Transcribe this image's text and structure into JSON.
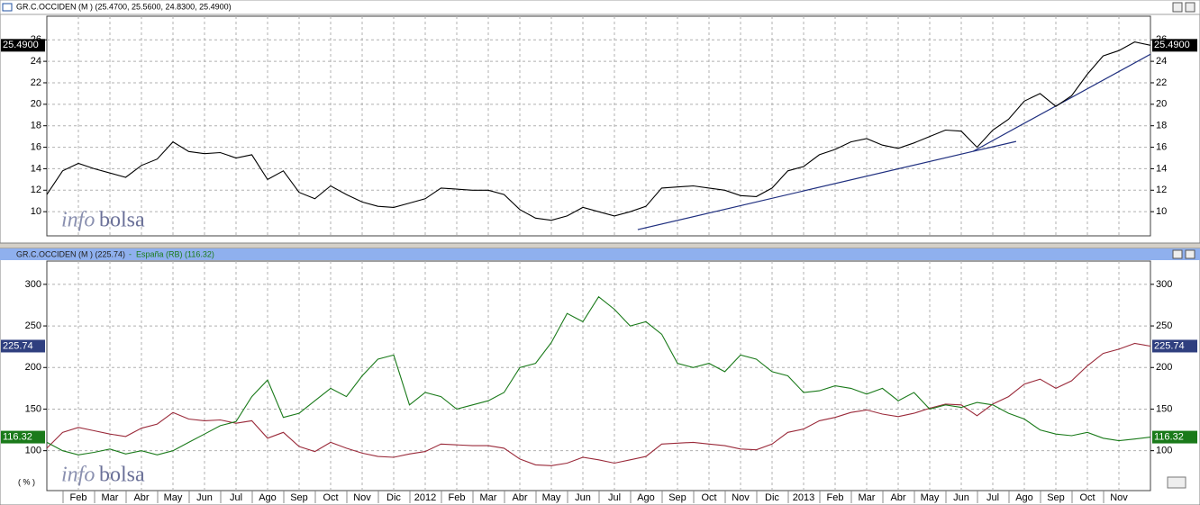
{
  "chart_data": [
    {
      "type": "line",
      "title": "GR.C.OCCIDEN (M ) (25.4700, 25.5600, 24.8300, 25.4900)",
      "xlim": [
        0,
        35
      ],
      "xticks": [
        1,
        2,
        3,
        4,
        5,
        6,
        7,
        8,
        9,
        10,
        11,
        12,
        13,
        14,
        15,
        16,
        17,
        18,
        19,
        20,
        21,
        22,
        23,
        24,
        25,
        26,
        27,
        28,
        29,
        30,
        31,
        32,
        33,
        34
      ],
      "ylim": [
        7.75,
        28.2
      ],
      "yticks": [
        10,
        12,
        14,
        16,
        18,
        20,
        22,
        24,
        26
      ],
      "grid": true,
      "x": [
        0,
        0.5,
        1,
        1.5,
        2,
        2.5,
        3,
        3.5,
        4,
        4.5,
        5,
        5.5,
        6,
        6.5,
        7,
        7.5,
        8,
        8.5,
        9,
        9.5,
        10,
        10.5,
        11,
        11.5,
        12,
        12.5,
        13,
        13.5,
        14,
        14.5,
        15,
        15.5,
        16,
        16.5,
        17,
        17.5,
        18,
        18.5,
        19,
        19.5,
        20,
        20.5,
        21,
        21.5,
        22,
        22.5,
        23,
        23.5,
        24,
        24.5,
        25,
        25.5,
        26,
        26.5,
        27,
        27.5,
        28,
        28.5,
        29,
        29.5,
        30,
        30.5,
        31,
        31.5,
        32,
        32.5,
        33,
        33.5,
        34,
        34.5,
        35
      ],
      "series": [
        {
          "name": "GR.C.OCCIDEN (M )",
          "color": "#000000",
          "values": [
            11.6,
            13.8,
            14.5,
            14.0,
            13.6,
            13.2,
            14.3,
            14.9,
            16.5,
            15.6,
            15.4,
            15.5,
            15.0,
            15.3,
            13.0,
            13.8,
            11.8,
            11.2,
            12.4,
            11.6,
            10.9,
            10.5,
            10.4,
            10.8,
            11.2,
            12.2,
            12.1,
            12.0,
            12.0,
            11.6,
            10.2,
            9.4,
            9.2,
            9.6,
            10.4,
            10.0,
            9.6,
            10.0,
            10.5,
            12.2,
            12.3,
            12.4,
            12.2,
            12.0,
            11.5,
            11.4,
            12.2,
            13.8,
            14.2,
            15.3,
            15.8,
            16.5,
            16.8,
            16.2,
            15.9,
            16.4,
            17.0,
            17.6,
            17.5,
            16.0,
            17.6,
            18.6,
            20.3,
            21.0,
            19.8,
            20.8,
            22.8,
            24.5,
            25.0,
            25.8,
            25.49
          ]
        }
      ],
      "last_label": "25.4900",
      "trendlines": {
        "color": "#1f2f7f",
        "lines": [
          {
            "x": [
              18.74,
              29.37
            ],
            "y": [
              8.33,
              15.61
            ]
          },
          {
            "x": [
              29.37,
              35
            ],
            "y": [
              15.61,
              24.66
            ]
          },
          {
            "x": [
              29.37,
              30.74
            ],
            "y": [
              15.61,
              16.54
            ]
          }
        ]
      },
      "watermark": [
        "info",
        "bolsa"
      ]
    },
    {
      "type": "line",
      "legend_separator": "-",
      "xlim": [
        0,
        35
      ],
      "xticks": [
        {
          "value": 1,
          "label": "Feb"
        },
        {
          "value": 2,
          "label": "Mar"
        },
        {
          "value": 3,
          "label": "Abr"
        },
        {
          "value": 4,
          "label": "May"
        },
        {
          "value": 5,
          "label": "Jun"
        },
        {
          "value": 6,
          "label": "Jul"
        },
        {
          "value": 7,
          "label": "Ago"
        },
        {
          "value": 8,
          "label": "Sep"
        },
        {
          "value": 9,
          "label": "Oct"
        },
        {
          "value": 10,
          "label": "Nov"
        },
        {
          "value": 11,
          "label": "Dic"
        },
        {
          "value": 12,
          "label": "2012"
        },
        {
          "value": 13,
          "label": "Feb"
        },
        {
          "value": 14,
          "label": "Mar"
        },
        {
          "value": 15,
          "label": "Abr"
        },
        {
          "value": 16,
          "label": "May"
        },
        {
          "value": 17,
          "label": "Jun"
        },
        {
          "value": 18,
          "label": "Jul"
        },
        {
          "value": 19,
          "label": "Ago"
        },
        {
          "value": 20,
          "label": "Sep"
        },
        {
          "value": 21,
          "label": "Oct"
        },
        {
          "value": 22,
          "label": "Nov"
        },
        {
          "value": 23,
          "label": "Dic"
        },
        {
          "value": 24,
          "label": "2013"
        },
        {
          "value": 25,
          "label": "Feb"
        },
        {
          "value": 26,
          "label": "Mar"
        },
        {
          "value": 27,
          "label": "Abr"
        },
        {
          "value": 28,
          "label": "May"
        },
        {
          "value": 29,
          "label": "Jun"
        },
        {
          "value": 30,
          "label": "Jul"
        },
        {
          "value": 31,
          "label": "Ago"
        },
        {
          "value": 32,
          "label": "Sep"
        },
        {
          "value": 33,
          "label": "Oct"
        },
        {
          "value": 34,
          "label": "Nov"
        }
      ],
      "ylim": [
        52,
        328
      ],
      "yticks": [
        100,
        150,
        200,
        250,
        300
      ],
      "grid": true,
      "y_unit": "( % )",
      "x": [
        0,
        0.5,
        1,
        1.5,
        2,
        2.5,
        3,
        3.5,
        4,
        4.5,
        5,
        5.5,
        6,
        6.5,
        7,
        7.5,
        8,
        8.5,
        9,
        9.5,
        10,
        10.5,
        11,
        11.5,
        12,
        12.5,
        13,
        13.5,
        14,
        14.5,
        15,
        15.5,
        16,
        16.5,
        17,
        17.5,
        18,
        18.5,
        19,
        19.5,
        20,
        20.5,
        21,
        21.5,
        22,
        22.5,
        23,
        23.5,
        24,
        24.5,
        25,
        25.5,
        26,
        26.5,
        27,
        27.5,
        28,
        28.5,
        29,
        29.5,
        30,
        30.5,
        31,
        31.5,
        32,
        32.5,
        33,
        33.5,
        34,
        34.5,
        35
      ],
      "series": [
        {
          "name": "GR.C.OCCIDEN (M ) (225.74)",
          "color": "#9a2a3a",
          "badge": "#2f3f7f",
          "values": [
            103,
            122,
            128,
            124,
            120,
            117,
            127,
            132,
            146,
            138,
            136,
            137,
            133,
            136,
            115,
            122,
            105,
            99,
            110,
            103,
            97,
            93,
            92,
            96,
            99,
            108,
            107,
            106,
            106,
            103,
            90,
            83,
            82,
            85,
            92,
            89,
            85,
            89,
            93,
            108,
            109,
            110,
            108,
            106,
            102,
            101,
            108,
            122,
            126,
            136,
            140,
            146,
            149,
            144,
            141,
            145,
            151,
            156,
            155,
            142,
            156,
            165,
            180,
            186,
            175,
            184,
            202,
            217,
            222,
            229,
            225.74
          ]
        },
        {
          "name": "España (RB) (116.32)",
          "color": "#1a7a1a",
          "badge": "#1a7a1a",
          "values": [
            110,
            100,
            95,
            98,
            102,
            96,
            100,
            95,
            100,
            110,
            120,
            130,
            135,
            165,
            185,
            140,
            145,
            160,
            175,
            165,
            190,
            210,
            215,
            155,
            170,
            165,
            150,
            155,
            160,
            170,
            200,
            205,
            230,
            265,
            255,
            285,
            270,
            250,
            255,
            240,
            205,
            200,
            205,
            195,
            215,
            210,
            195,
            190,
            170,
            172,
            178,
            175,
            168,
            175,
            160,
            170,
            150,
            155,
            152,
            158,
            155,
            145,
            138,
            125,
            120,
            118,
            122,
            115,
            112,
            114,
            116.32
          ]
        }
      ],
      "watermark": [
        "info",
        "bolsa"
      ]
    }
  ]
}
